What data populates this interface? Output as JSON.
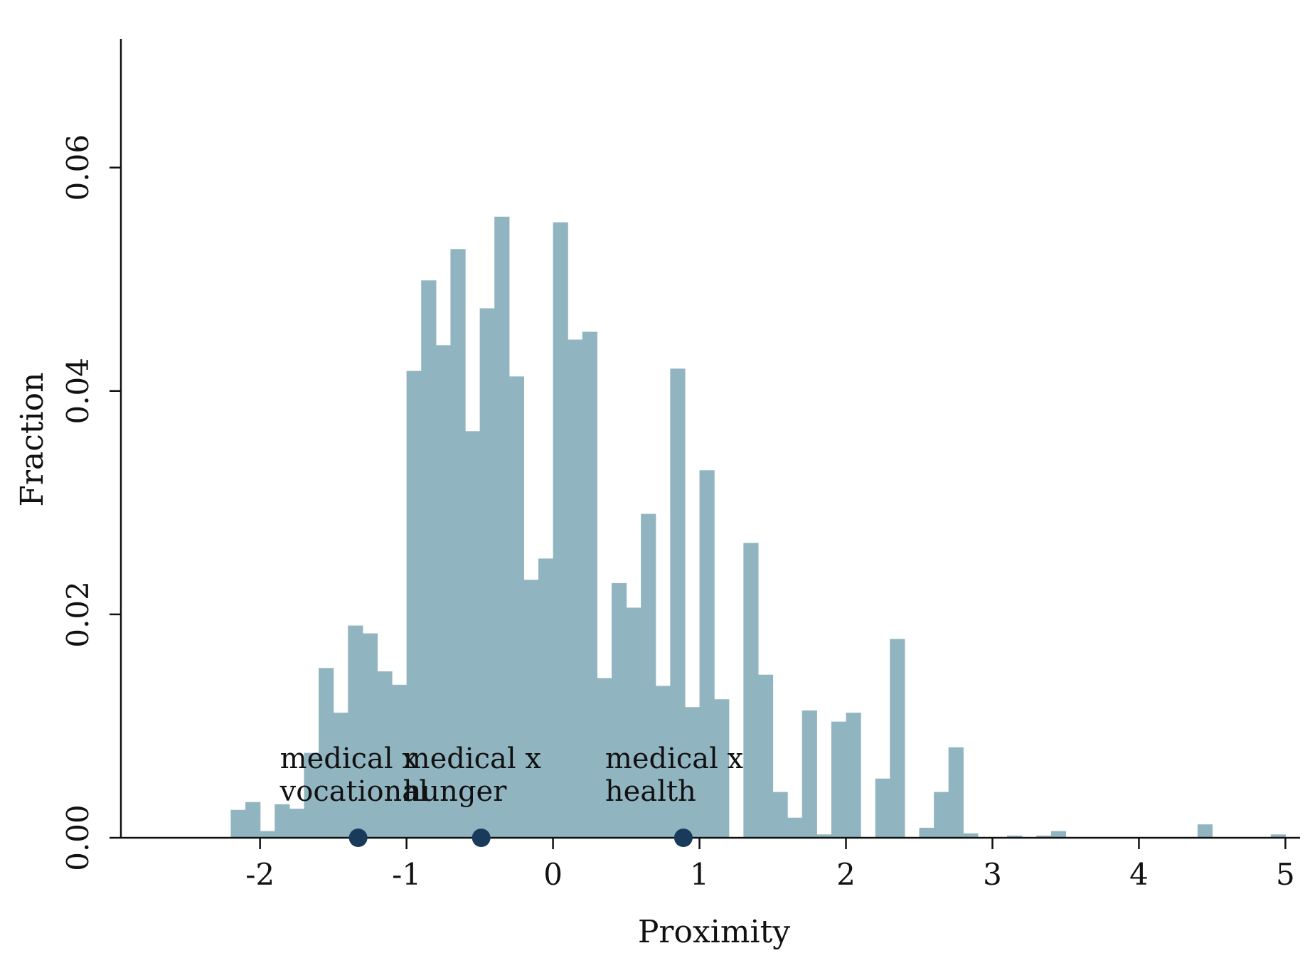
{
  "chart_data": {
    "type": "bar",
    "subtype": "histogram",
    "xlabel": "Proximity",
    "ylabel": "Fraction",
    "xlim": [
      -2.95,
      5.1
    ],
    "ylim": [
      0,
      0.0715
    ],
    "bin_width": 0.1,
    "x_ticks": [
      -2,
      -1,
      0,
      1,
      2,
      3,
      4,
      5
    ],
    "x_tick_labels": [
      "-2",
      "-1",
      "0",
      "1",
      "2",
      "3",
      "4",
      "5"
    ],
    "y_ticks": [
      0,
      0.02,
      0.04,
      0.06
    ],
    "y_tick_labels": [
      "0.00",
      "0.02",
      "0.04",
      "0.06"
    ],
    "grid": false,
    "colors": {
      "bars": "#91b4c1",
      "markers": "#1a3a5c",
      "axis": "#111111"
    },
    "bins": [
      {
        "x": -2.2,
        "y": 0.0025
      },
      {
        "x": -2.1,
        "y": 0.0032
      },
      {
        "x": -2.0,
        "y": 0.0006
      },
      {
        "x": -1.9,
        "y": 0.003
      },
      {
        "x": -1.8,
        "y": 0.0026
      },
      {
        "x": -1.7,
        "y": 0.0076
      },
      {
        "x": -1.6,
        "y": 0.0152
      },
      {
        "x": -1.5,
        "y": 0.0112
      },
      {
        "x": -1.4,
        "y": 0.019
      },
      {
        "x": -1.3,
        "y": 0.0183
      },
      {
        "x": -1.2,
        "y": 0.0149
      },
      {
        "x": -1.1,
        "y": 0.0137
      },
      {
        "x": -1.0,
        "y": 0.0418
      },
      {
        "x": -0.9,
        "y": 0.0499
      },
      {
        "x": -0.8,
        "y": 0.0441
      },
      {
        "x": -0.7,
        "y": 0.0527
      },
      {
        "x": -0.6,
        "y": 0.0364
      },
      {
        "x": -0.5,
        "y": 0.0474
      },
      {
        "x": -0.4,
        "y": 0.0556
      },
      {
        "x": -0.3,
        "y": 0.0413
      },
      {
        "x": -0.2,
        "y": 0.0231
      },
      {
        "x": -0.1,
        "y": 0.025
      },
      {
        "x": 0.0,
        "y": 0.0551
      },
      {
        "x": 0.1,
        "y": 0.0446
      },
      {
        "x": 0.2,
        "y": 0.0453
      },
      {
        "x": 0.3,
        "y": 0.0143
      },
      {
        "x": 0.4,
        "y": 0.0228
      },
      {
        "x": 0.5,
        "y": 0.0206
      },
      {
        "x": 0.6,
        "y": 0.029
      },
      {
        "x": 0.7,
        "y": 0.0136
      },
      {
        "x": 0.8,
        "y": 0.042
      },
      {
        "x": 0.9,
        "y": 0.0117
      },
      {
        "x": 1.0,
        "y": 0.0329
      },
      {
        "x": 1.1,
        "y": 0.0124
      },
      {
        "x": 1.2,
        "y": 0.0
      },
      {
        "x": 1.3,
        "y": 0.0264
      },
      {
        "x": 1.4,
        "y": 0.0146
      },
      {
        "x": 1.5,
        "y": 0.0041
      },
      {
        "x": 1.6,
        "y": 0.0018
      },
      {
        "x": 1.7,
        "y": 0.0114
      },
      {
        "x": 1.8,
        "y": 0.0003
      },
      {
        "x": 1.9,
        "y": 0.0104
      },
      {
        "x": 2.0,
        "y": 0.0112
      },
      {
        "x": 2.1,
        "y": 0.0
      },
      {
        "x": 2.2,
        "y": 0.0053
      },
      {
        "x": 2.3,
        "y": 0.0178
      },
      {
        "x": 2.4,
        "y": 0.0
      },
      {
        "x": 2.5,
        "y": 0.0009
      },
      {
        "x": 2.6,
        "y": 0.0041
      },
      {
        "x": 2.7,
        "y": 0.0081
      },
      {
        "x": 2.8,
        "y": 0.0004
      },
      {
        "x": 3.1,
        "y": 0.0002
      },
      {
        "x": 3.3,
        "y": 0.0002
      },
      {
        "x": 3.4,
        "y": 0.0006
      },
      {
        "x": 4.4,
        "y": 0.0012
      },
      {
        "x": 4.9,
        "y": 0.0003
      }
    ],
    "markers": [
      {
        "x": -1.33,
        "y": 0,
        "label_lines": [
          "medical x",
          "vocational"
        ]
      },
      {
        "x": -0.49,
        "y": 0,
        "label_lines": [
          "medical x",
          "hunger"
        ]
      },
      {
        "x": 0.89,
        "y": 0,
        "label_lines": [
          "medical x",
          "health"
        ]
      }
    ]
  }
}
